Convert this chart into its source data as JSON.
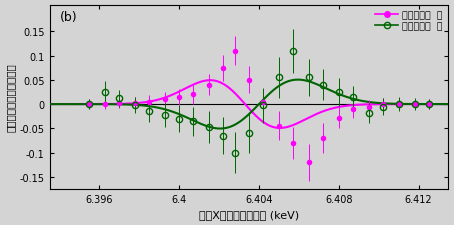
{
  "title_label": "(b)",
  "xlabel": "蛍光X線のエネルギー (keV)",
  "ylabel": "右円偏光と左円偏光の差",
  "xlim": [
    6.3935,
    6.4135
  ],
  "ylim": [
    -0.175,
    0.205
  ],
  "xticks": [
    6.396,
    6.4,
    6.404,
    6.408,
    6.412
  ],
  "xtick_labels": [
    "6.396",
    "6.4",
    "6.404",
    "6.408",
    "6.412"
  ],
  "yticks": [
    -0.15,
    -0.1,
    -0.05,
    0,
    0.05,
    0.1,
    0.15
  ],
  "legend1": "磁化の向き  正",
  "legend2": "磁化の向き  逆",
  "magenta_color": "#FF00FF",
  "green_color": "#006400",
  "bg_color": "#d4d4d4"
}
